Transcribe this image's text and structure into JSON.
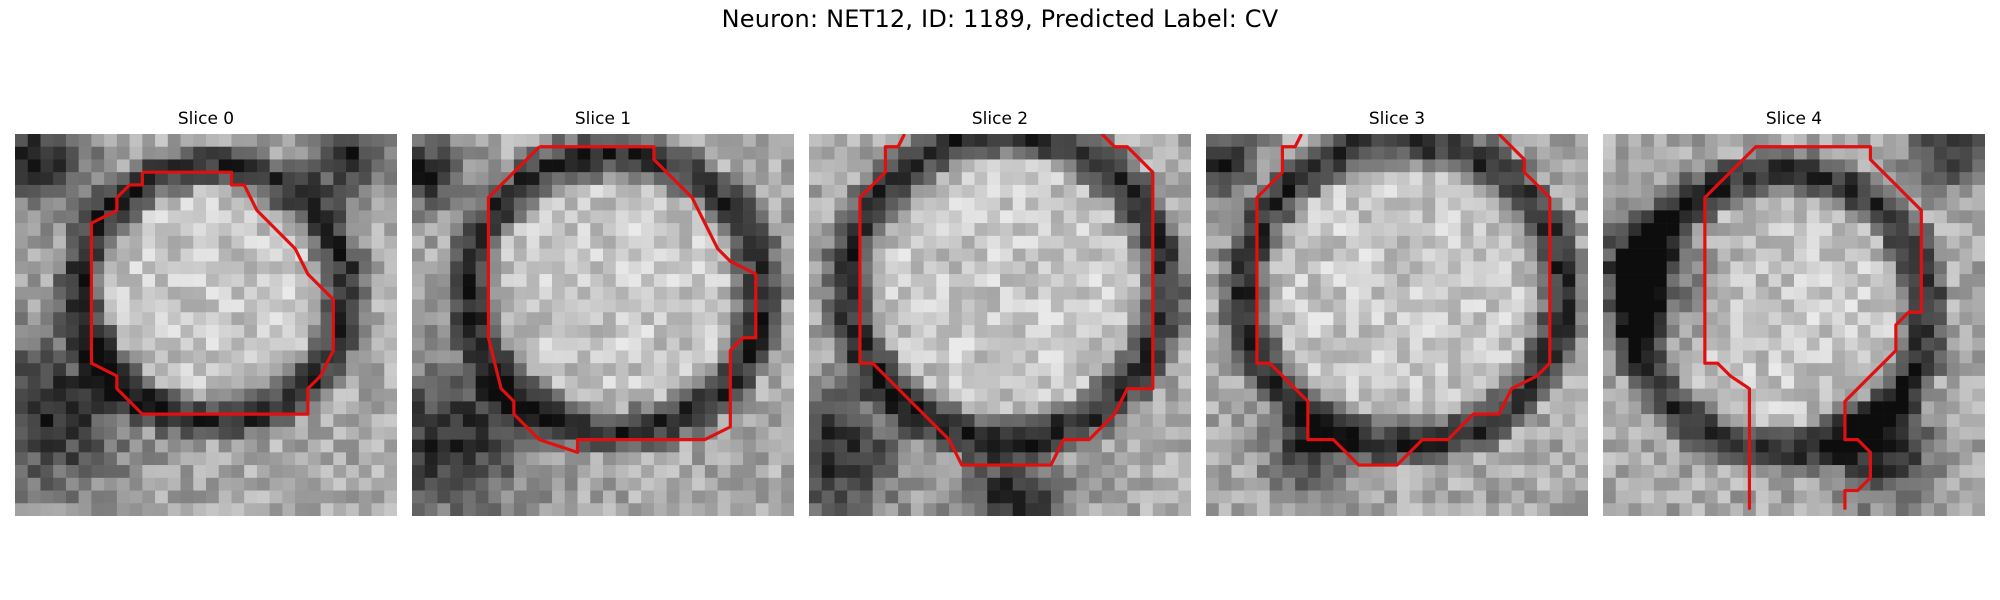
{
  "figure": {
    "title": "Neuron: NET12, ID: 1189, Predicted Label: CV",
    "contour_color": "#e01010",
    "colormap": "gray"
  },
  "panels": [
    {
      "title": "Slice 0",
      "variant": 0
    },
    {
      "title": "Slice 1",
      "variant": 1
    },
    {
      "title": "Slice 2",
      "variant": 2
    },
    {
      "title": "Slice 3",
      "variant": 3
    },
    {
      "title": "Slice 4",
      "variant": 4
    }
  ]
}
